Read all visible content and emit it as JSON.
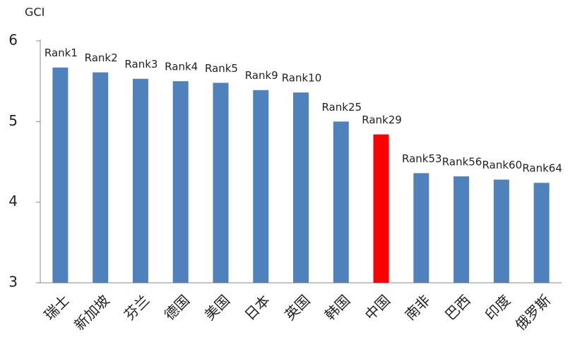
{
  "chart_data": {
    "type": "bar",
    "y_label": "GCI",
    "categories": [
      "瑞士",
      "新加坡",
      "芬兰",
      "德国",
      "美国",
      "日本",
      "英国",
      "韩国",
      "中国",
      "南非",
      "巴西",
      "印度",
      "俄罗斯"
    ],
    "values": [
      5.67,
      5.61,
      5.53,
      5.5,
      5.48,
      5.39,
      5.36,
      5.0,
      4.84,
      4.36,
      4.32,
      4.28,
      4.24
    ],
    "annotations": [
      "Rank1",
      "Rank2",
      "Rank3",
      "Rank4",
      "Rank5",
      "Rank9",
      "Rank10",
      "Rank25",
      "Rank29",
      "Rank53",
      "Rank56",
      "Rank60",
      "Rank64"
    ],
    "colors": [
      "#4f81bd",
      "#4f81bd",
      "#4f81bd",
      "#4f81bd",
      "#4f81bd",
      "#4f81bd",
      "#4f81bd",
      "#4f81bd",
      "#ff0000",
      "#4f81bd",
      "#4f81bd",
      "#4f81bd",
      "#4f81bd"
    ],
    "ylim": [
      3,
      6
    ],
    "yticks": [
      3,
      4,
      5,
      6
    ],
    "grid": false
  }
}
